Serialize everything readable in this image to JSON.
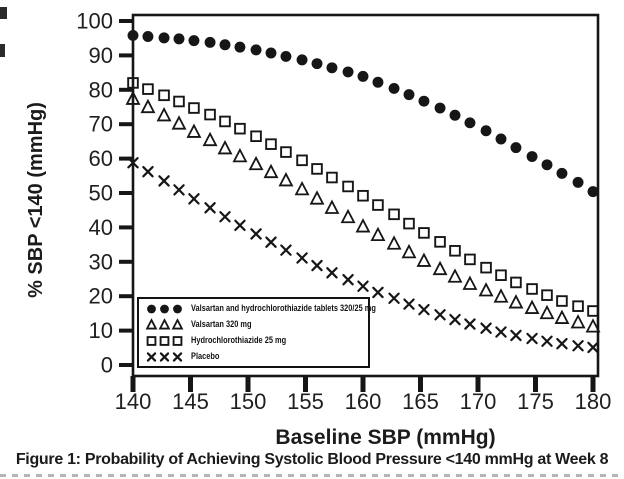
{
  "figure": {
    "caption": "Figure 1: Probability of Achieving Systolic Blood Pressure <140 mmHg at Week 8"
  },
  "chart_data": {
    "type": "scatter",
    "title": "",
    "xlabel": "Baseline SBP (mmHg)",
    "ylabel": "% SBP <140 (mmHg)",
    "xlim": [
      140,
      180
    ],
    "ylim": [
      0,
      100
    ],
    "x_ticks": [
      140,
      145,
      150,
      155,
      160,
      165,
      170,
      175,
      180
    ],
    "y_ticks": [
      0,
      10,
      20,
      30,
      40,
      50,
      60,
      70,
      80,
      90,
      100
    ],
    "grid": false,
    "legend_position": "inside-lower-left",
    "marker_color": "#161616",
    "x": [
      140,
      141.3,
      142.7,
      144,
      145.3,
      146.7,
      148,
      149.3,
      150.7,
      152,
      153.3,
      154.7,
      156,
      157.3,
      158.7,
      160,
      161.3,
      162.7,
      164,
      165.3,
      166.7,
      168,
      169.3,
      170.7,
      172,
      173.3,
      174.7,
      176,
      177.3,
      178.7,
      180
    ],
    "series": [
      {
        "name": "Valsartan and hydrochlorothiazide tablets 320/25 mg",
        "marker": "filled-circle",
        "values": [
          95.8,
          95.5,
          95.1,
          94.8,
          94.3,
          93.8,
          93.1,
          92.4,
          91.6,
          90.7,
          89.7,
          88.7,
          87.6,
          86.4,
          85.2,
          83.9,
          82.2,
          80.4,
          78.6,
          76.7,
          74.7,
          72.6,
          70.4,
          68.1,
          65.7,
          63.2,
          60.6,
          58.2,
          55.7,
          53.1,
          50.4
        ]
      },
      {
        "name": "Valsartan 320 mg",
        "marker": "open-triangle",
        "values": [
          77.3,
          74.9,
          72.5,
          70.1,
          67.7,
          65.3,
          62.9,
          60.6,
          58.3,
          56.0,
          53.6,
          51.0,
          48.3,
          45.6,
          42.9,
          40.2,
          37.7,
          35.2,
          32.7,
          30.2,
          27.8,
          25.6,
          23.5,
          21.6,
          19.8,
          18.1,
          16.5,
          15.0,
          13.6,
          12.3,
          11.1
        ]
      },
      {
        "name": "Hydrochlorothiazide 25 mg",
        "marker": "open-square",
        "values": [
          82.0,
          80.2,
          78.4,
          76.6,
          74.7,
          72.8,
          70.8,
          68.7,
          66.5,
          64.2,
          61.9,
          59.5,
          57.0,
          54.5,
          51.9,
          49.2,
          46.5,
          43.8,
          41.1,
          38.4,
          35.8,
          33.2,
          30.7,
          28.3,
          26.1,
          24.0,
          22.1,
          20.3,
          18.6,
          17.1,
          15.7
        ]
      },
      {
        "name": "Placebo",
        "marker": "x-cross",
        "values": [
          58.8,
          56.2,
          53.5,
          50.9,
          48.3,
          45.7,
          43.1,
          40.6,
          38.1,
          35.7,
          33.4,
          31.1,
          28.9,
          26.8,
          24.8,
          22.9,
          21.1,
          19.4,
          17.7,
          16.1,
          14.6,
          13.2,
          11.9,
          10.7,
          9.6,
          8.6,
          7.7,
          6.9,
          6.2,
          5.6,
          5.1
        ]
      }
    ]
  }
}
